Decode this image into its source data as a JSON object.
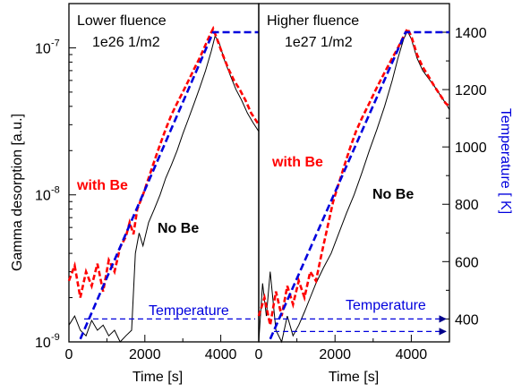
{
  "chart_data": {
    "type": "line",
    "y_left": {
      "label": "Gamma desorption [a.u.]",
      "scale": "log",
      "range": [
        1e-09,
        2e-07
      ],
      "tick_labels": [
        {
          "value": 1e-09,
          "base": "10",
          "exp": "-9"
        },
        {
          "value": 1e-08,
          "base": "10",
          "exp": "-8"
        },
        {
          "value": 1e-07,
          "base": "10",
          "exp": "-7"
        }
      ]
    },
    "y_right": {
      "label": "Temperature [ K]",
      "range": [
        320,
        1500
      ],
      "ticks": [
        400,
        600,
        800,
        1000,
        1200,
        1400
      ]
    },
    "colors": {
      "no_be": "#000000",
      "with_be": "#ff0000",
      "temperature": "#0000dd"
    },
    "panels": [
      {
        "title_line1": "Lower fluence",
        "title_line2": "1e26 1/m2",
        "x_label": "Time [s]",
        "x_range": [
          0,
          5000
        ],
        "x_ticks": [
          0,
          2000,
          4000
        ],
        "label_with_be": "with Be",
        "label_no_be": "No Be",
        "temperature_label": "Temperature",
        "series": [
          {
            "name": "No Be",
            "x": [
              0,
              150,
              300,
              450,
              600,
              750,
              900,
              1050,
              1200,
              1350,
              1500,
              1650,
              1750,
              1850,
              1950,
              2100,
              2250,
              2400,
              2550,
              2700,
              2850,
              3000,
              3150,
              3300,
              3450,
              3600,
              3750,
              3850,
              3950,
              4100,
              4250,
              4400,
              4550,
              4700,
              4850,
              5000
            ],
            "y": [
              1.3e-09,
              1.5e-09,
              1.2e-09,
              1.1e-09,
              1.4e-09,
              1.2e-09,
              1.3e-09,
              1.1e-09,
              1.2e-09,
              1e-09,
              1.1e-09,
              1.2e-09,
              4e-09,
              5.5e-09,
              4.5e-09,
              6.5e-09,
              8e-09,
              1e-08,
              1.3e-08,
              1.6e-08,
              2e-08,
              2.6e-08,
              3.3e-08,
              4.2e-08,
              5.4e-08,
              7e-08,
              9.5e-08,
              1.2e-07,
              1.1e-07,
              8.2e-08,
              6.5e-08,
              5.2e-08,
              4.4e-08,
              3.6e-08,
              3.1e-08,
              2.7e-08
            ]
          },
          {
            "name": "with Be",
            "x": [
              0,
              150,
              300,
              450,
              600,
              750,
              900,
              1050,
              1200,
              1350,
              1500,
              1600,
              1700,
              1800,
              1950,
              2100,
              2250,
              2400,
              2550,
              2700,
              2850,
              3000,
              3150,
              3300,
              3450,
              3600,
              3700,
              3800,
              3900,
              4050,
              4200,
              4350,
              4500,
              4650,
              4800,
              5000
            ],
            "y": [
              2.6e-09,
              3.3e-09,
              2e-09,
              3e-09,
              2.4e-09,
              3.4e-09,
              2.2e-09,
              3.6e-09,
              3e-09,
              4.4e-09,
              5.2e-09,
              6.5e-09,
              5.4e-09,
              8e-09,
              1e-08,
              1.3e-08,
              1.7e-08,
              2.2e-08,
              2.8e-08,
              3.5e-08,
              4.2e-08,
              5e-08,
              6e-08,
              7.2e-08,
              8.6e-08,
              1.05e-07,
              1.2e-07,
              1.35e-07,
              1.15e-07,
              9e-08,
              7.2e-08,
              6e-08,
              5.2e-08,
              4.4e-08,
              3.6e-08,
              3e-08
            ]
          },
          {
            "name": "Temperature",
            "axis": "right",
            "x": [
              300,
              3800,
              5000
            ],
            "y": [
              330,
              1400,
              1400
            ]
          }
        ]
      },
      {
        "title_line1": "Higher fluence",
        "title_line2": "1e27 1/m2",
        "x_label": "Time [s]",
        "x_range": [
          0,
          5000
        ],
        "x_ticks": [
          0,
          2000,
          4000
        ],
        "label_with_be": "with Be",
        "label_no_be": "No Be",
        "temperature_label": "Temperature",
        "series": [
          {
            "name": "No Be",
            "x": [
              0,
              100,
              200,
              300,
              450,
              600,
              750,
              900,
              1050,
              1200,
              1350,
              1500,
              1700,
              1900,
              2100,
              2300,
              2500,
              2700,
              2900,
              3100,
              3300,
              3500,
              3650,
              3800,
              3900,
              4000,
              4150,
              4300,
              4450,
              4600,
              4750,
              4900,
              5000
            ],
            "y": [
              1e-09,
              2.5e-09,
              1.5e-09,
              3e-09,
              1.2e-09,
              1e-09,
              1.5e-09,
              1.1e-09,
              1.3e-09,
              1.6e-09,
              2e-09,
              2.5e-09,
              3.2e-09,
              4e-09,
              5.5e-09,
              7.5e-09,
              1e-08,
              1.4e-08,
              2e-08,
              2.8e-08,
              4e-08,
              6e-08,
              8.5e-08,
              1.15e-07,
              1.3e-07,
              1.15e-07,
              8.5e-08,
              7e-08,
              6.2e-08,
              5.5e-08,
              4.8e-08,
              4.2e-08,
              3.8e-08
            ]
          },
          {
            "name": "with Be",
            "x": [
              0,
              150,
              300,
              450,
              600,
              750,
              900,
              1050,
              1200,
              1350,
              1500,
              1650,
              1800,
              1950,
              2100,
              2250,
              2400,
              2550,
              2700,
              2900,
              3100,
              3300,
              3500,
              3650,
              3800,
              3900,
              4000,
              4150,
              4300,
              4450,
              4600,
              4750,
              4900,
              5000
            ],
            "y": [
              1.5e-09,
              2e-09,
              1.3e-09,
              2.2e-09,
              1.5e-09,
              2.4e-09,
              1.8e-09,
              2.6e-09,
              2e-09,
              3e-09,
              2.6e-09,
              4e-09,
              6e-09,
              9e-09,
              1.2e-08,
              1.6e-08,
              2.1e-08,
              2.7e-08,
              3.3e-08,
              4.2e-08,
              5.4e-08,
              6.8e-08,
              8.5e-08,
              1e-07,
              1.2e-07,
              1.35e-07,
              1.2e-07,
              9e-08,
              7.4e-08,
              6.4e-08,
              5.5e-08,
              4.8e-08,
              4.2e-08,
              4e-08
            ]
          },
          {
            "name": "Temperature",
            "axis": "right",
            "x": [
              300,
              3850,
              5000
            ],
            "y": [
              330,
              1400,
              1400
            ]
          }
        ]
      }
    ]
  }
}
